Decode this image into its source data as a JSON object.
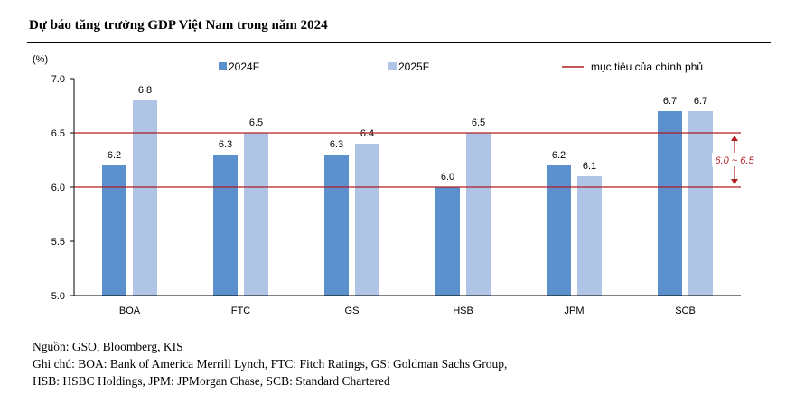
{
  "title": "Dự báo tăng trưởng GDP Việt Nam trong năm 2024",
  "chart_data": {
    "type": "bar",
    "unit_label": "(%)",
    "categories": [
      "BOA",
      "FTC",
      "GS",
      "HSB",
      "JPM",
      "SCB"
    ],
    "series": [
      {
        "name": "2024F",
        "values": [
          6.2,
          6.3,
          6.3,
          6.0,
          6.2,
          6.7
        ],
        "color": "#5b90cc"
      },
      {
        "name": "2025F",
        "values": [
          6.8,
          6.5,
          6.4,
          6.5,
          6.1,
          6.7
        ],
        "color": "#b0c4e6"
      }
    ],
    "value_labels": [
      [
        "6.2",
        "6.3",
        "6.3",
        "6.0",
        "6.2",
        "6.7"
      ],
      [
        "6.8",
        "6.5",
        "6.4",
        "6.5",
        "6.1",
        "6.7"
      ]
    ],
    "ylim": [
      5.0,
      7.0
    ],
    "yticks": [
      "5.0",
      "5.5",
      "6.0",
      "6.5",
      "7.0"
    ],
    "target_lines": [
      6.0,
      6.5
    ],
    "target_label": "mục tiêu của chính phủ",
    "target_color": "#b01e23",
    "range_annotation": "6.0 ~ 6.5",
    "legend_position": "top"
  },
  "notes": {
    "source": "Nguồn: GSO, Bloomberg, KIS",
    "line1": "Ghi chú: BOA: Bank of America Merrill Lynch, FTC: Fitch Ratings, GS: Goldman Sachs Group,",
    "line2": "HSB: HSBC Holdings, JPM: JPMorgan Chase, SCB: Standard Chartered"
  }
}
